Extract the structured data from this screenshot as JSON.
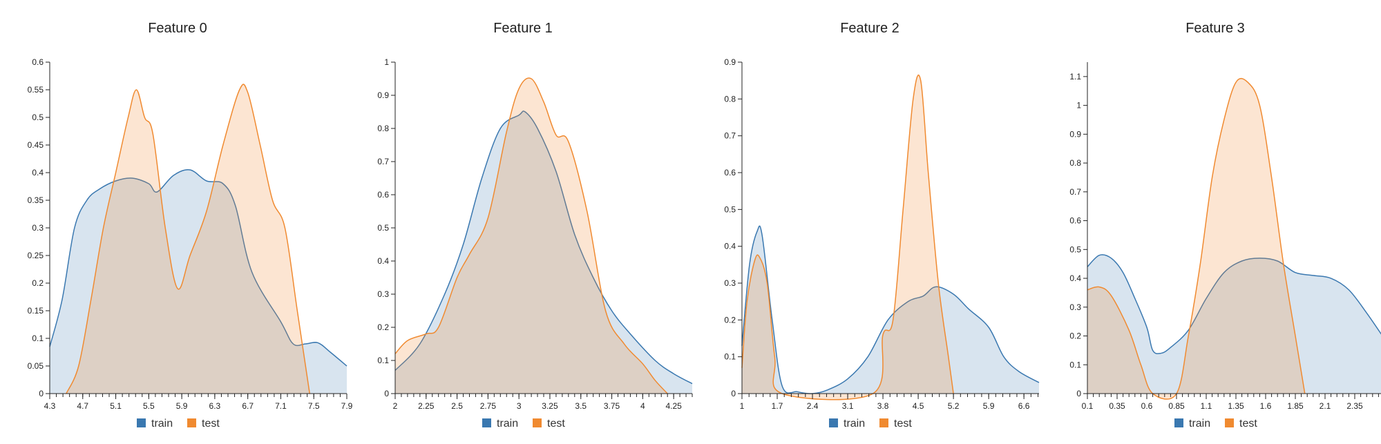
{
  "colors": {
    "train": "#3a78b0",
    "test": "#f08a30"
  },
  "legend": {
    "items": [
      {
        "label": "train",
        "color": "#3a78b0"
      },
      {
        "label": "test",
        "color": "#f08a30"
      }
    ]
  },
  "chart_data": [
    {
      "type": "area",
      "title": "Feature 0",
      "xlim": [
        4.3,
        7.9
      ],
      "ylim": [
        0,
        0.6
      ],
      "xticks": [
        4.3,
        4.7,
        5.1,
        5.5,
        5.9,
        6.3,
        6.7,
        7.1,
        7.5,
        7.9
      ],
      "xtick_labels": [
        "4.3",
        "4.7",
        "5.1",
        "5.5",
        "5.9",
        "6.3",
        "6.7",
        "7.1",
        "7.5",
        "7.9"
      ],
      "yticks": [
        0,
        0.05,
        0.1,
        0.15,
        0.2,
        0.25,
        0.3,
        0.35,
        0.4,
        0.45,
        0.5,
        0.55,
        0.6
      ],
      "ytick_labels": [
        "0",
        "0.05",
        "0.1",
        "0.15",
        "0.2",
        "0.25",
        "0.3",
        "0.35",
        "0.4",
        "0.45",
        "0.5",
        "0.55",
        "0.6"
      ],
      "series": [
        {
          "name": "train",
          "points": [
            [
              4.3,
              0.085
            ],
            [
              4.45,
              0.17
            ],
            [
              4.6,
              0.3
            ],
            [
              4.75,
              0.35
            ],
            [
              4.9,
              0.37
            ],
            [
              5.1,
              0.385
            ],
            [
              5.3,
              0.39
            ],
            [
              5.5,
              0.38
            ],
            [
              5.6,
              0.365
            ],
            [
              5.8,
              0.395
            ],
            [
              6.0,
              0.405
            ],
            [
              6.2,
              0.385
            ],
            [
              6.4,
              0.38
            ],
            [
              6.55,
              0.34
            ],
            [
              6.75,
              0.22
            ],
            [
              7.1,
              0.13
            ],
            [
              7.25,
              0.09
            ],
            [
              7.4,
              0.09
            ],
            [
              7.55,
              0.092
            ],
            [
              7.7,
              0.075
            ],
            [
              7.9,
              0.05
            ]
          ]
        },
        {
          "name": "test",
          "points": [
            [
              4.5,
              0
            ],
            [
              4.65,
              0.05
            ],
            [
              4.8,
              0.17
            ],
            [
              4.95,
              0.3
            ],
            [
              5.1,
              0.4
            ],
            [
              5.25,
              0.5
            ],
            [
              5.35,
              0.55
            ],
            [
              5.45,
              0.5
            ],
            [
              5.55,
              0.47
            ],
            [
              5.7,
              0.3
            ],
            [
              5.85,
              0.19
            ],
            [
              6.0,
              0.25
            ],
            [
              6.2,
              0.33
            ],
            [
              6.4,
              0.45
            ],
            [
              6.6,
              0.55
            ],
            [
              6.7,
              0.545
            ],
            [
              6.85,
              0.45
            ],
            [
              7.0,
              0.35
            ],
            [
              7.15,
              0.3
            ],
            [
              7.3,
              0.15
            ],
            [
              7.45,
              0
            ]
          ]
        }
      ]
    },
    {
      "type": "area",
      "title": "Feature 1",
      "xlim": [
        2.0,
        4.4
      ],
      "ylim": [
        0,
        1.0
      ],
      "xticks": [
        2,
        2.25,
        2.5,
        2.75,
        3,
        3.25,
        3.5,
        3.75,
        4,
        4.25
      ],
      "xtick_labels": [
        "2",
        "2.25",
        "2.5",
        "2.75",
        "3",
        "3.25",
        "3.5",
        "3.75",
        "4",
        "4.25"
      ],
      "yticks": [
        0,
        0.1,
        0.2,
        0.3,
        0.4,
        0.5,
        0.6,
        0.7,
        0.8,
        0.9,
        1
      ],
      "ytick_labels": [
        "0",
        "0.1",
        "0.2",
        "0.3",
        "0.4",
        "0.5",
        "0.6",
        "0.7",
        "0.8",
        "0.9",
        "1"
      ],
      "series": [
        {
          "name": "train",
          "points": [
            [
              2.0,
              0.07
            ],
            [
              2.2,
              0.15
            ],
            [
              2.4,
              0.3
            ],
            [
              2.55,
              0.45
            ],
            [
              2.7,
              0.65
            ],
            [
              2.85,
              0.8
            ],
            [
              3.0,
              0.84
            ],
            [
              3.05,
              0.85
            ],
            [
              3.15,
              0.8
            ],
            [
              3.3,
              0.67
            ],
            [
              3.45,
              0.48
            ],
            [
              3.6,
              0.35
            ],
            [
              3.75,
              0.25
            ],
            [
              3.9,
              0.18
            ],
            [
              4.1,
              0.1
            ],
            [
              4.25,
              0.06
            ],
            [
              4.4,
              0.03
            ]
          ]
        },
        {
          "name": "test",
          "points": [
            [
              2.0,
              0.12
            ],
            [
              2.1,
              0.16
            ],
            [
              2.25,
              0.18
            ],
            [
              2.35,
              0.2
            ],
            [
              2.5,
              0.35
            ],
            [
              2.6,
              0.42
            ],
            [
              2.75,
              0.53
            ],
            [
              2.9,
              0.79
            ],
            [
              3.0,
              0.92
            ],
            [
              3.1,
              0.95
            ],
            [
              3.2,
              0.88
            ],
            [
              3.3,
              0.78
            ],
            [
              3.4,
              0.76
            ],
            [
              3.55,
              0.55
            ],
            [
              3.7,
              0.25
            ],
            [
              3.85,
              0.15
            ],
            [
              4.0,
              0.09
            ],
            [
              4.1,
              0.04
            ],
            [
              4.2,
              0
            ]
          ]
        }
      ]
    },
    {
      "type": "area",
      "title": "Feature 2",
      "xlim": [
        1.0,
        6.9
      ],
      "ylim": [
        0,
        0.9
      ],
      "xticks": [
        1,
        1.7,
        2.4,
        3.1,
        3.8,
        4.5,
        5.2,
        5.9,
        6.6
      ],
      "xtick_labels": [
        "1",
        "1.7",
        "2.4",
        "3.1",
        "3.8",
        "4.5",
        "5.2",
        "5.9",
        "6.6"
      ],
      "yticks": [
        0,
        0.1,
        0.2,
        0.3,
        0.4,
        0.5,
        0.6,
        0.7,
        0.8,
        0.9
      ],
      "ytick_labels": [
        "0",
        "0.1",
        "0.2",
        "0.3",
        "0.4",
        "0.5",
        "0.6",
        "0.7",
        "0.8",
        "0.9"
      ],
      "series": [
        {
          "name": "train",
          "points": [
            [
              1.0,
              0.13
            ],
            [
              1.15,
              0.35
            ],
            [
              1.3,
              0.44
            ],
            [
              1.4,
              0.43
            ],
            [
              1.6,
              0.2
            ],
            [
              1.8,
              0.02
            ],
            [
              2.1,
              0.005
            ],
            [
              2.4,
              0
            ],
            [
              2.7,
              0.01
            ],
            [
              3.1,
              0.04
            ],
            [
              3.5,
              0.1
            ],
            [
              3.9,
              0.2
            ],
            [
              4.3,
              0.25
            ],
            [
              4.6,
              0.265
            ],
            [
              4.85,
              0.29
            ],
            [
              5.2,
              0.27
            ],
            [
              5.5,
              0.23
            ],
            [
              5.9,
              0.18
            ],
            [
              6.2,
              0.1
            ],
            [
              6.5,
              0.06
            ],
            [
              6.9,
              0.03
            ]
          ]
        },
        {
          "name": "test",
          "points": [
            [
              1.0,
              0.07
            ],
            [
              1.1,
              0.25
            ],
            [
              1.25,
              0.36
            ],
            [
              1.35,
              0.37
            ],
            [
              1.5,
              0.3
            ],
            [
              1.65,
              0.1
            ],
            [
              1.8,
              0
            ],
            [
              3.6,
              0
            ],
            [
              3.8,
              0.16
            ],
            [
              4.0,
              0.2
            ],
            [
              4.2,
              0.5
            ],
            [
              4.4,
              0.8
            ],
            [
              4.55,
              0.85
            ],
            [
              4.7,
              0.6
            ],
            [
              4.9,
              0.3
            ],
            [
              5.1,
              0.1
            ],
            [
              5.2,
              0
            ]
          ]
        }
      ]
    },
    {
      "type": "area",
      "title": "Feature 3",
      "xlim": [
        0.1,
        2.6
      ],
      "ylim": [
        0,
        1.15
      ],
      "xticks": [
        0.1,
        0.35,
        0.6,
        0.85,
        1.1,
        1.35,
        1.6,
        1.85,
        2.1,
        2.35
      ],
      "xtick_labels": [
        "0.1",
        "0.35",
        "0.6",
        "0.85",
        "1.1",
        "1.35",
        "1.6",
        "1.85",
        "2.1",
        "2.35"
      ],
      "yticks": [
        0,
        0.1,
        0.2,
        0.3,
        0.4,
        0.5,
        0.6,
        0.7,
        0.8,
        0.9,
        1,
        1.1
      ],
      "ytick_labels": [
        "0",
        "0.1",
        "0.2",
        "0.3",
        "0.4",
        "0.5",
        "0.6",
        "0.7",
        "0.8",
        "0.9",
        "1",
        "1.1"
      ],
      "series": [
        {
          "name": "train",
          "points": [
            [
              0.1,
              0.44
            ],
            [
              0.2,
              0.48
            ],
            [
              0.3,
              0.47
            ],
            [
              0.4,
              0.42
            ],
            [
              0.5,
              0.33
            ],
            [
              0.6,
              0.23
            ],
            [
              0.65,
              0.15
            ],
            [
              0.72,
              0.14
            ],
            [
              0.8,
              0.16
            ],
            [
              0.95,
              0.22
            ],
            [
              1.1,
              0.33
            ],
            [
              1.25,
              0.42
            ],
            [
              1.4,
              0.46
            ],
            [
              1.55,
              0.47
            ],
            [
              1.7,
              0.46
            ],
            [
              1.85,
              0.42
            ],
            [
              2.0,
              0.41
            ],
            [
              2.15,
              0.4
            ],
            [
              2.3,
              0.36
            ],
            [
              2.45,
              0.28
            ],
            [
              2.6,
              0.19
            ]
          ]
        },
        {
          "name": "test",
          "points": [
            [
              0.1,
              0.36
            ],
            [
              0.2,
              0.37
            ],
            [
              0.3,
              0.34
            ],
            [
              0.45,
              0.22
            ],
            [
              0.55,
              0.1
            ],
            [
              0.65,
              0
            ],
            [
              0.85,
              0
            ],
            [
              0.95,
              0.2
            ],
            [
              1.05,
              0.45
            ],
            [
              1.15,
              0.75
            ],
            [
              1.25,
              0.95
            ],
            [
              1.35,
              1.08
            ],
            [
              1.45,
              1.08
            ],
            [
              1.55,
              1.0
            ],
            [
              1.65,
              0.75
            ],
            [
              1.75,
              0.45
            ],
            [
              1.85,
              0.2
            ],
            [
              1.93,
              0
            ]
          ]
        }
      ]
    }
  ]
}
